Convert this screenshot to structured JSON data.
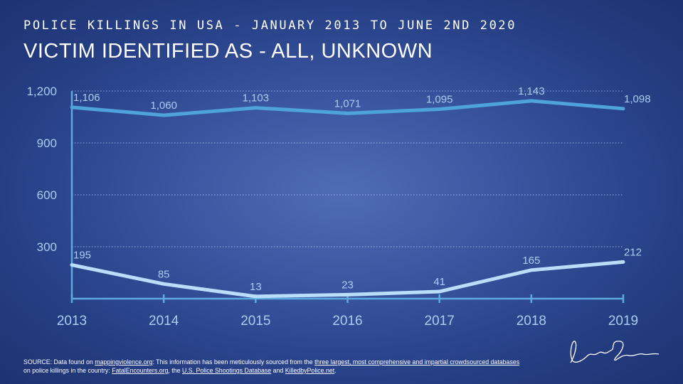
{
  "header": {
    "kicker": "POLICE KILLINGS IN USA - JANUARY 2013 TO JUNE 2ND 2020",
    "title": "VICTIM IDENTIFIED AS - ALL, UNKNOWN"
  },
  "chart_data": {
    "type": "line",
    "x": [
      "2013",
      "2014",
      "2015",
      "2016",
      "2017",
      "2018",
      "2019"
    ],
    "series": [
      {
        "values": [
          1106,
          1060,
          1103,
          1071,
          1095,
          1143,
          1098
        ],
        "labels": [
          "1,106",
          "1,060",
          "1,103",
          "1,071",
          "1,095",
          "1,143",
          "1,098"
        ],
        "color": "#4fa3dc"
      },
      {
        "values": [
          195,
          85,
          13,
          23,
          41,
          165,
          212
        ],
        "labels": [
          "195",
          "85",
          "13",
          "23",
          "41",
          "165",
          "212"
        ],
        "color": "#b9defa"
      }
    ],
    "yticks": [
      300,
      600,
      900,
      1200
    ],
    "ytick_labels": [
      "300",
      "600",
      "900",
      "1,200"
    ],
    "ylim": [
      0,
      1200
    ],
    "grid": true
  },
  "footer": {
    "source_prefix": "SOURCE: Data found on ",
    "source_link1": "mappingviolence.org",
    "source_mid1": ": This information has been meticulously sourced from the ",
    "source_link2": "three largest, most comprehensive and impartial crowdsourced databases",
    "source_mid2": " on police killings in the country: ",
    "source_link3": "FatalEncounters.org",
    "source_mid3": ", the ",
    "source_link4": "U.S. Police Shootings Database",
    "source_mid4": " and ",
    "source_link5": "KilledbyPolice.net",
    "source_end": "."
  },
  "signature": {
    "text": "Lara Shiroki"
  }
}
